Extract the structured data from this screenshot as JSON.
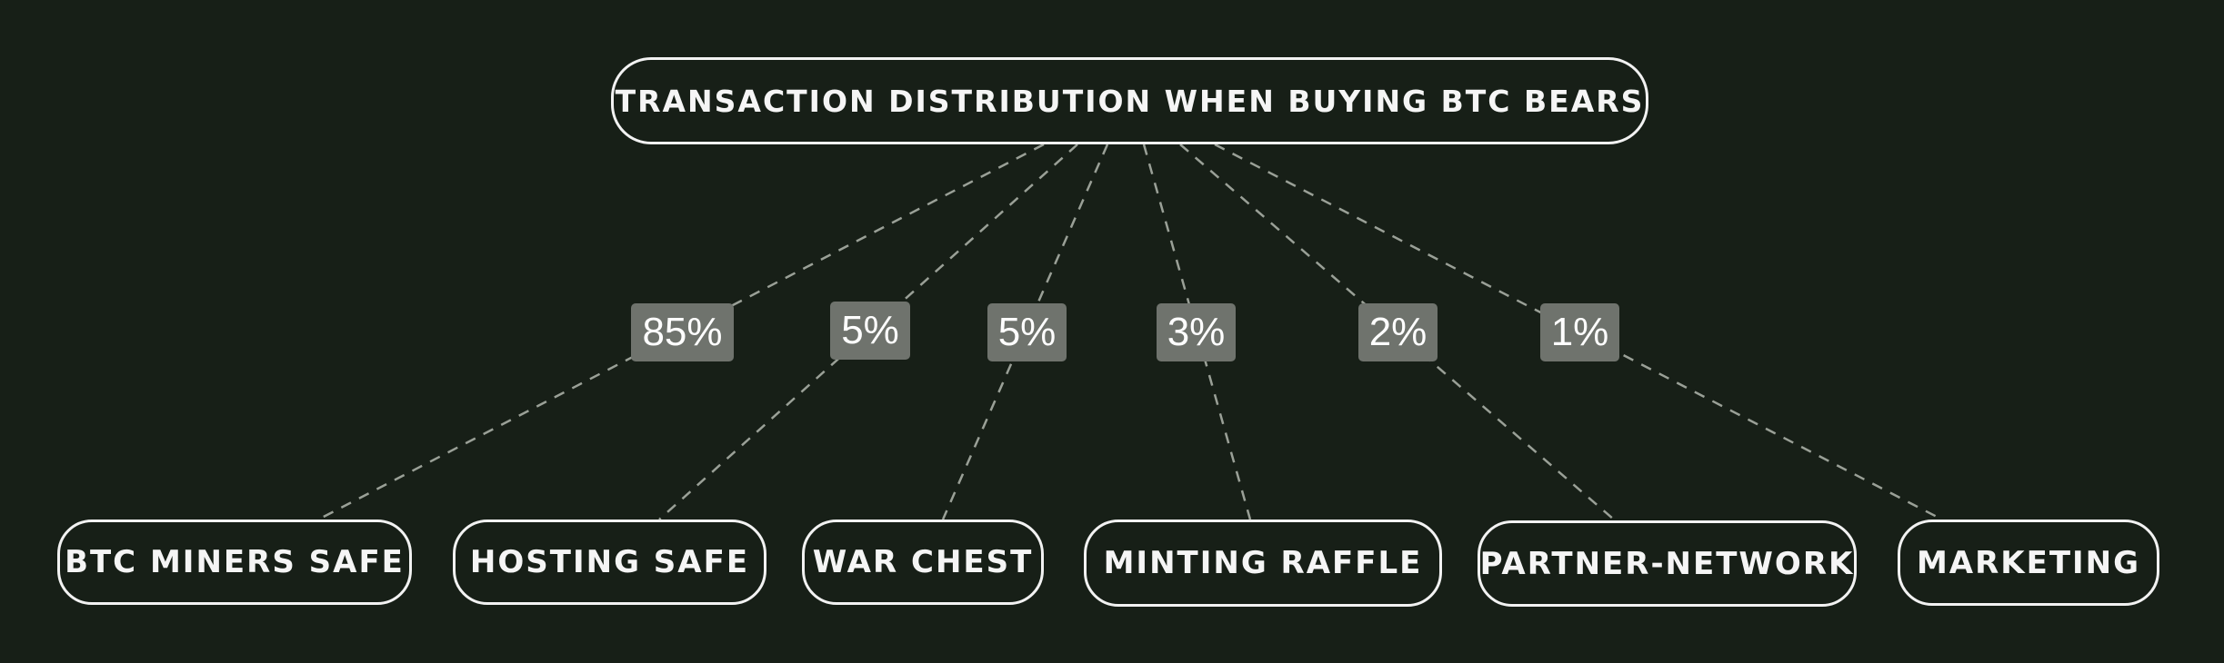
{
  "diagram": {
    "root": {
      "label": "TRANSACTION DISTRIBUTION WHEN BUYING BTC BEARS"
    },
    "children": [
      {
        "label": "BTC MINERS SAFE",
        "share": "85%"
      },
      {
        "label": "HOSTING SAFE",
        "share": "5%"
      },
      {
        "label": "WAR CHEST",
        "share": "5%"
      },
      {
        "label": "MINTING RAFFLE",
        "share": "3%"
      },
      {
        "label": "PARTNER-NETWORK",
        "share": "2%"
      },
      {
        "label": "MARKETING",
        "share": "1%"
      }
    ]
  },
  "colors": {
    "background": "#171f17",
    "node_border": "#f2f2f2",
    "edge": "#9aa097",
    "label_box": "#6f736d",
    "text": "#f5f5f5"
  }
}
